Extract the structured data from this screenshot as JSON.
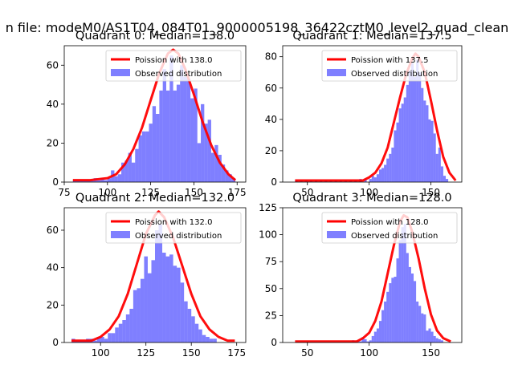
{
  "figure_title": "n file: modeM0/AS1T04_084T01_9000005198_36422cztM0_level2_quad_clean",
  "chart_data": [
    {
      "type": "bar",
      "title": "Quadrant 0: Median=138.0",
      "xlim": [
        75,
        180
      ],
      "ylim": [
        0,
        70
      ],
      "xticks": [
        75,
        100,
        125,
        150,
        175
      ],
      "yticks": [
        0,
        20,
        40,
        60
      ],
      "median": 138.0,
      "legend": [
        "Poission with 138.0",
        "Observed distribution"
      ],
      "bins": [
        [
          80,
          1
        ],
        [
          82,
          1
        ],
        [
          84,
          1
        ],
        [
          86,
          1
        ],
        [
          88,
          1
        ],
        [
          90,
          1
        ],
        [
          92,
          2
        ],
        [
          94,
          1
        ],
        [
          96,
          2
        ],
        [
          98,
          1
        ],
        [
          100,
          2
        ],
        [
          102,
          6
        ],
        [
          104,
          3
        ],
        [
          106,
          4
        ],
        [
          108,
          10
        ],
        [
          110,
          11
        ],
        [
          112,
          15
        ],
        [
          114,
          10
        ],
        [
          116,
          17
        ],
        [
          118,
          24
        ],
        [
          120,
          26
        ],
        [
          122,
          26
        ],
        [
          124,
          30
        ],
        [
          126,
          39
        ],
        [
          128,
          35
        ],
        [
          130,
          47
        ],
        [
          132,
          58
        ],
        [
          134,
          47
        ],
        [
          136,
          65
        ],
        [
          138,
          47
        ],
        [
          140,
          50
        ],
        [
          142,
          60
        ],
        [
          144,
          54
        ],
        [
          146,
          53
        ],
        [
          148,
          43
        ],
        [
          150,
          48
        ],
        [
          152,
          20
        ],
        [
          154,
          40
        ],
        [
          156,
          30
        ],
        [
          158,
          32
        ],
        [
          160,
          15
        ],
        [
          162,
          19
        ],
        [
          164,
          14
        ],
        [
          166,
          9
        ],
        [
          168,
          6
        ],
        [
          170,
          4
        ],
        [
          172,
          2
        ]
      ],
      "series": [
        {
          "name": "Poission with 138.0",
          "color": "#ff0000",
          "points": [
            [
              80,
              1
            ],
            [
              90,
              1
            ],
            [
              100,
              2
            ],
            [
              105,
              4
            ],
            [
              110,
              9
            ],
            [
              115,
              17
            ],
            [
              120,
              28
            ],
            [
              125,
              42
            ],
            [
              130,
              56
            ],
            [
              135,
              66
            ],
            [
              138,
              68
            ],
            [
              141,
              66
            ],
            [
              145,
              58
            ],
            [
              150,
              45
            ],
            [
              155,
              31
            ],
            [
              160,
              19
            ],
            [
              165,
              10
            ],
            [
              170,
              4
            ],
            [
              174,
              1
            ]
          ]
        }
      ]
    },
    {
      "type": "bar",
      "title": "Quadrant 1: Median=137.5",
      "xlim": [
        30,
        175
      ],
      "ylim": [
        0,
        87
      ],
      "xticks": [
        50,
        100,
        150
      ],
      "yticks": [
        0,
        20,
        40,
        60,
        80
      ],
      "median": 137.5,
      "legend": [
        "Poission with 137.5",
        "Observed distribution"
      ],
      "bins": [
        [
          40,
          1
        ],
        [
          44,
          1
        ],
        [
          48,
          1
        ],
        [
          52,
          1
        ],
        [
          56,
          1
        ],
        [
          60,
          1
        ],
        [
          64,
          1
        ],
        [
          68,
          1
        ],
        [
          72,
          1
        ],
        [
          76,
          1
        ],
        [
          80,
          1
        ],
        [
          84,
          1
        ],
        [
          88,
          1
        ],
        [
          92,
          2
        ],
        [
          96,
          2
        ],
        [
          100,
          2
        ],
        [
          102,
          4
        ],
        [
          104,
          3
        ],
        [
          106,
          5
        ],
        [
          108,
          8
        ],
        [
          110,
          9
        ],
        [
          112,
          11
        ],
        [
          114,
          15
        ],
        [
          116,
          18
        ],
        [
          118,
          22
        ],
        [
          120,
          33
        ],
        [
          122,
          38
        ],
        [
          124,
          47
        ],
        [
          126,
          50
        ],
        [
          128,
          54
        ],
        [
          130,
          62
        ],
        [
          132,
          71
        ],
        [
          134,
          76
        ],
        [
          136,
          67
        ],
        [
          138,
          78
        ],
        [
          140,
          70
        ],
        [
          142,
          60
        ],
        [
          144,
          52
        ],
        [
          146,
          49
        ],
        [
          148,
          40
        ],
        [
          150,
          39
        ],
        [
          152,
          31
        ],
        [
          154,
          18
        ],
        [
          156,
          22
        ],
        [
          158,
          10
        ],
        [
          160,
          4
        ],
        [
          162,
          2
        ]
      ],
      "series": [
        {
          "name": "Poission with 137.5",
          "color": "#ff0000",
          "points": [
            [
              40,
              1
            ],
            [
              80,
              1
            ],
            [
              95,
              1
            ],
            [
              100,
              3
            ],
            [
              105,
              6
            ],
            [
              110,
              12
            ],
            [
              115,
              22
            ],
            [
              120,
              38
            ],
            [
              125,
              54
            ],
            [
              130,
              69
            ],
            [
              135,
              79
            ],
            [
              137.5,
              82
            ],
            [
              140,
              80
            ],
            [
              145,
              70
            ],
            [
              150,
              52
            ],
            [
              155,
              33
            ],
            [
              160,
              16
            ],
            [
              165,
              6
            ],
            [
              170,
              1
            ]
          ]
        }
      ]
    },
    {
      "type": "bar",
      "title": "Quadrant 2: Median=132.0",
      "xlim": [
        80,
        180
      ],
      "ylim": [
        0,
        72
      ],
      "xticks": [
        100,
        125,
        150,
        175
      ],
      "yticks": [
        0,
        20,
        40,
        60
      ],
      "median": 132.0,
      "legend": [
        "Poission with 132.0",
        "Observed distribution"
      ],
      "bins": [
        [
          84,
          2
        ],
        [
          86,
          1
        ],
        [
          88,
          1
        ],
        [
          90,
          1
        ],
        [
          92,
          2
        ],
        [
          94,
          2
        ],
        [
          96,
          1
        ],
        [
          98,
          3
        ],
        [
          100,
          3
        ],
        [
          102,
          2
        ],
        [
          104,
          5
        ],
        [
          106,
          5
        ],
        [
          108,
          8
        ],
        [
          110,
          10
        ],
        [
          112,
          12
        ],
        [
          114,
          15
        ],
        [
          116,
          18
        ],
        [
          118,
          28
        ],
        [
          120,
          29
        ],
        [
          122,
          34
        ],
        [
          124,
          46
        ],
        [
          126,
          37
        ],
        [
          128,
          44
        ],
        [
          130,
          60
        ],
        [
          132,
          63
        ],
        [
          134,
          48
        ],
        [
          136,
          46
        ],
        [
          138,
          47
        ],
        [
          140,
          41
        ],
        [
          142,
          40
        ],
        [
          144,
          32
        ],
        [
          146,
          22
        ],
        [
          148,
          18
        ],
        [
          150,
          14
        ],
        [
          152,
          10
        ],
        [
          154,
          7
        ],
        [
          156,
          4
        ],
        [
          158,
          3
        ],
        [
          160,
          2
        ],
        [
          162,
          2
        ]
      ],
      "series": [
        {
          "name": "Poission with 132.0",
          "color": "#ff0000",
          "points": [
            [
              84,
              1
            ],
            [
              95,
              1
            ],
            [
              100,
              3
            ],
            [
              105,
              7
            ],
            [
              110,
              14
            ],
            [
              115,
              26
            ],
            [
              120,
              42
            ],
            [
              125,
              58
            ],
            [
              130,
              68
            ],
            [
              132,
              70
            ],
            [
              135,
              67
            ],
            [
              140,
              56
            ],
            [
              145,
              41
            ],
            [
              150,
              26
            ],
            [
              155,
              14
            ],
            [
              160,
              7
            ],
            [
              165,
              3
            ],
            [
              170,
              1
            ],
            [
              174,
              1
            ]
          ]
        }
      ]
    },
    {
      "type": "bar",
      "title": "Quadrant 3: Median=128.0",
      "xlim": [
        30,
        175
      ],
      "ylim": [
        0,
        125
      ],
      "xticks": [
        50,
        100,
        150
      ],
      "yticks": [
        0,
        25,
        50,
        75,
        100,
        125
      ],
      "median": 128.0,
      "legend": [
        "Poission with 128.0",
        "Observed distribution"
      ],
      "bins": [
        [
          86,
          2
        ],
        [
          88,
          1
        ],
        [
          90,
          1
        ],
        [
          92,
          1
        ],
        [
          94,
          5
        ],
        [
          96,
          3
        ],
        [
          98,
          1
        ],
        [
          100,
          2
        ],
        [
          102,
          6
        ],
        [
          104,
          10
        ],
        [
          106,
          13
        ],
        [
          108,
          20
        ],
        [
          110,
          30
        ],
        [
          112,
          38
        ],
        [
          114,
          47
        ],
        [
          116,
          55
        ],
        [
          118,
          60
        ],
        [
          120,
          61
        ],
        [
          122,
          78
        ],
        [
          124,
          95
        ],
        [
          126,
          107
        ],
        [
          128,
          110
        ],
        [
          130,
          83
        ],
        [
          132,
          70
        ],
        [
          134,
          64
        ],
        [
          136,
          57
        ],
        [
          138,
          38
        ],
        [
          140,
          34
        ],
        [
          142,
          27
        ],
        [
          144,
          26
        ],
        [
          146,
          11
        ],
        [
          148,
          13
        ],
        [
          150,
          10
        ],
        [
          152,
          6
        ],
        [
          154,
          4
        ],
        [
          156,
          3
        ],
        [
          158,
          2
        ]
      ],
      "series": [
        {
          "name": "Poission with 128.0",
          "color": "#ff0000",
          "points": [
            [
              40,
              1
            ],
            [
              80,
              1
            ],
            [
              90,
              1
            ],
            [
              95,
              4
            ],
            [
              100,
              9
            ],
            [
              105,
              20
            ],
            [
              110,
              38
            ],
            [
              115,
              64
            ],
            [
              120,
              90
            ],
            [
              125,
              112
            ],
            [
              128,
              118
            ],
            [
              131,
              116
            ],
            [
              135,
              102
            ],
            [
              140,
              78
            ],
            [
              145,
              50
            ],
            [
              150,
              26
            ],
            [
              155,
              11
            ],
            [
              160,
              4
            ],
            [
              166,
              1
            ]
          ]
        }
      ]
    }
  ]
}
